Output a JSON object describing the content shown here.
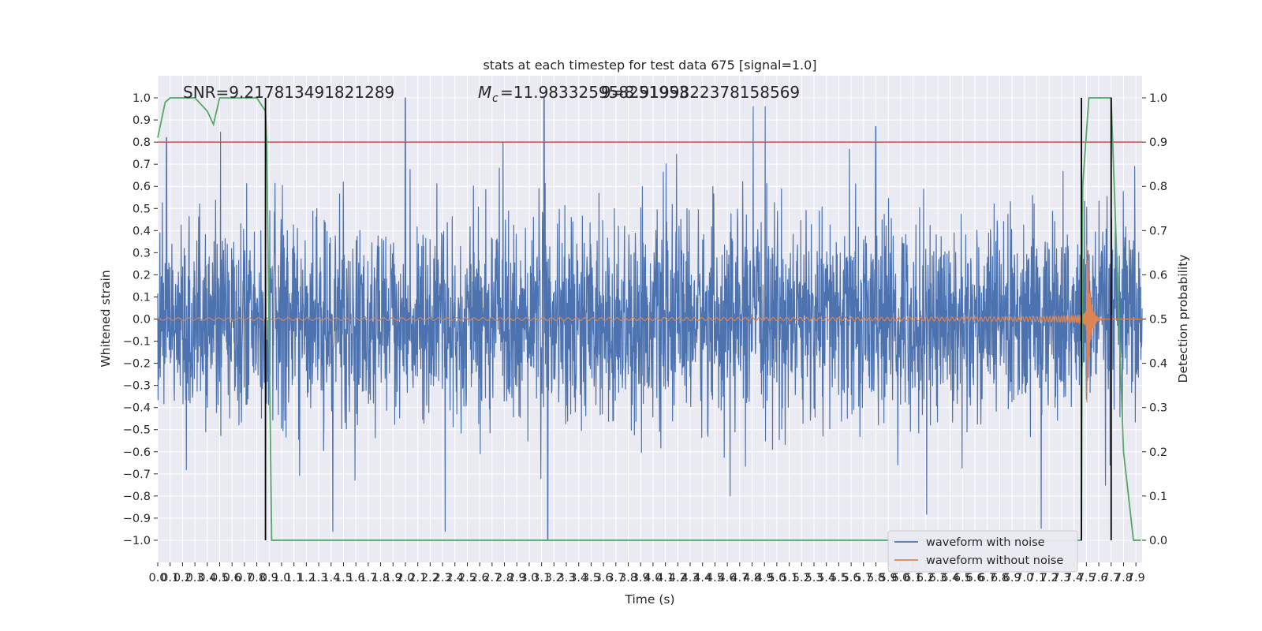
{
  "chart_data": {
    "type": "line",
    "title": "stats at each timestep for test data 675 [signal=1.0]",
    "xlabel": "Time (s)",
    "ylabel": "Whitened strain",
    "ylabel_right": "Detection probability",
    "xlim": [
      0.0,
      7.95
    ],
    "ylim": [
      -1.1,
      1.1
    ],
    "ylim_right": [
      -0.05,
      1.05
    ],
    "grid": true,
    "legend_position": "lower right",
    "x_tick_labels": [
      "0.0",
      "0.1",
      "0.2",
      "0.3",
      "0.4",
      "0.5",
      "0.6",
      "0.7",
      "0.8",
      "0.9",
      "1.0",
      "1.1",
      "1.2",
      "1.3",
      "1.4",
      "1.5",
      "1.6",
      "1.7",
      "1.8",
      "1.9",
      "2.0",
      "2.1",
      "2.2",
      "2.3",
      "2.4",
      "2.5",
      "2.6",
      "2.7",
      "2.8",
      "2.9",
      "3.0",
      "3.1",
      "3.2",
      "3.3",
      "3.4",
      "3.5",
      "3.6",
      "3.7",
      "3.8",
      "3.9",
      "4.0",
      "4.1",
      "4.2",
      "4.3",
      "4.4",
      "4.5",
      "4.6",
      "4.7",
      "4.8",
      "4.9",
      "5.0",
      "5.1",
      "5.2",
      "5.3",
      "5.4",
      "5.5",
      "5.6",
      "5.7",
      "5.8",
      "5.9",
      "6.0",
      "6.1",
      "6.2",
      "6.3",
      "6.4",
      "6.5",
      "6.6",
      "6.7",
      "6.8",
      "6.9",
      "7.0",
      "7.1",
      "7.2",
      "7.3",
      "7.4",
      "7.5",
      "7.6",
      "7.7",
      "7.8",
      "7.9"
    ],
    "y_tick_labels_left": [
      "−1.0",
      "−0.9",
      "−0.8",
      "−0.7",
      "−0.6",
      "−0.5",
      "−0.4",
      "−0.3",
      "−0.2",
      "−0.1",
      "0.0",
      "0.1",
      "0.2",
      "0.3",
      "0.4",
      "0.5",
      "0.6",
      "0.7",
      "0.8",
      "0.9",
      "1.0"
    ],
    "y_tick_labels_right": [
      "0.0",
      "0.1",
      "0.2",
      "0.3",
      "0.4",
      "0.5",
      "0.6",
      "0.7",
      "0.8",
      "0.9",
      "1.0"
    ],
    "annotations": {
      "snr": "SNR=9.217813491821289",
      "mc_symbol": "M",
      "mc_subscript": "c",
      "mc_value": "=11.983325958251953",
      "mc_overlap": "9=8.9199822378158569"
    },
    "series": [
      {
        "name": "waveform with noise",
        "color": "#4c72b0",
        "axis": "left",
        "description_values": "noise-dominated whitened strain, amplitude mostly within ±0.6, peaks near ±1.0 at x≈2.0 and x≈3.1"
      },
      {
        "name": "waveform without noise",
        "color": "#dd8452",
        "axis": "left",
        "chirp": {
          "start": 0.0,
          "merger": 7.5,
          "ringdown_end": 7.62,
          "amp_start": 0.01,
          "amp_peak": 0.45
        }
      },
      {
        "name": "",
        "color": "#55a868",
        "axis": "right",
        "x": [
          0.0,
          0.06,
          0.1,
          0.2,
          0.3,
          0.4,
          0.45,
          0.5,
          0.55,
          0.6,
          0.7,
          0.8,
          0.87,
          0.88,
          0.92,
          1.0,
          7.0,
          7.46,
          7.47,
          7.52,
          7.65,
          7.7,
          7.75,
          7.8,
          7.88,
          7.94
        ],
        "y": [
          0.91,
          0.99,
          1.0,
          1.0,
          1.0,
          0.97,
          0.94,
          1.0,
          1.0,
          1.0,
          1.0,
          1.0,
          0.97,
          0.9,
          0.0,
          0.0,
          0.0,
          0.0,
          0.8,
          1.0,
          1.0,
          1.0,
          0.6,
          0.2,
          0.0,
          0.0
        ]
      }
    ],
    "threshold": {
      "value": 0.9,
      "axis": "right",
      "color": "#c44e52"
    },
    "event_markers": {
      "color": "#000000",
      "segments": [
        {
          "x": 0.87,
          "y_from": -1.0,
          "y_to": 1.0
        },
        {
          "x": 7.46,
          "y_from": -1.0,
          "y_to": 1.0
        },
        {
          "x": 7.7,
          "y_from": -1.0,
          "y_to": 1.0
        }
      ]
    },
    "legend": [
      {
        "label": "waveform with noise",
        "color": "#4c72b0"
      },
      {
        "label": "waveform without noise",
        "color": "#dd8452"
      }
    ]
  }
}
